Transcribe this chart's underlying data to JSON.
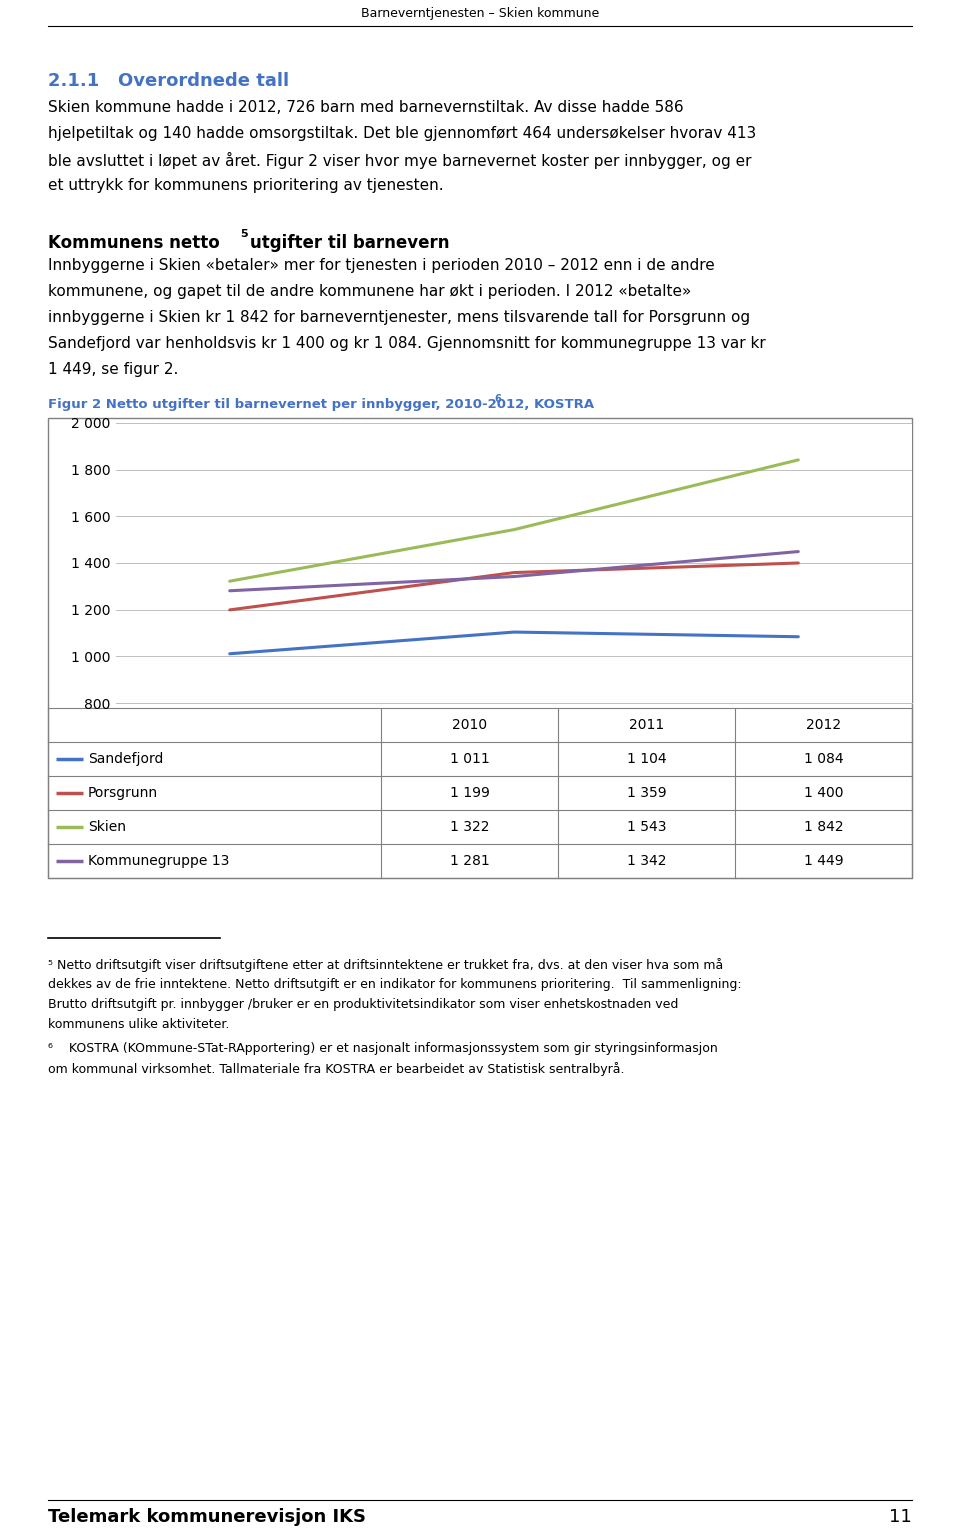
{
  "page_title": "Barneverntjenesten – Skien kommune",
  "page_number": "11",
  "footer_text": "Telemark kommunerevisjon IKS",
  "section_title": "2.1.1   Overordnede tall",
  "para1_lines": [
    "Skien kommune hadde i 2012, 726 barn med barnevernstiltak. Av disse hadde 586",
    "hjelpetiltak og 140 hadde omsorgstiltak. Det ble gjennomført 464 undersøkelser hvorav 413",
    "ble avsluttet i løpet av året. Figur 2 viser hvor mye barnevernet koster per innbygger, og er",
    "et uttrykk for kommunens prioritering av tjenesten."
  ],
  "section2_title": "Kommunens netto ⁵utgifter til barnevern",
  "para2_lines": [
    "Innbyggerne i Skien «betaler» mer for tjenesten i perioden 2010 – 2012 enn i de andre",
    "kommunene, og gapet til de andre kommunene har økt i perioden. I 2012 «betalte»",
    "innbyggerne i Skien kr 1 842 for barneverntjenester, mens tilsvarende tall for Porsgrunn og",
    "Sandefjord var henholdsvis kr 1 400 og kr 1 084. Gjennomsnitt for kommunegruppe 13 var kr",
    "1 449, se figur 2."
  ],
  "fig_caption_main": "Figur 2 Netto utgifter til barnevernet per innbygger, 2010-2012, KOSTRA",
  "fig_caption_super": "6",
  "years": [
    2010,
    2011,
    2012
  ],
  "series": [
    {
      "label": "Sandefjord",
      "color": "#4472C4",
      "values": [
        1011,
        1104,
        1084
      ]
    },
    {
      "label": "Porsgrunn",
      "color": "#C0504D",
      "values": [
        1199,
        1359,
        1400
      ]
    },
    {
      "label": "Skien",
      "color": "#9BBB59",
      "values": [
        1322,
        1543,
        1842
      ]
    },
    {
      "label": "Kommunegruppe 13",
      "color": "#8064A2",
      "values": [
        1281,
        1342,
        1449
      ]
    }
  ],
  "ylim": [
    800,
    2000
  ],
  "yticks": [
    800,
    1000,
    1200,
    1400,
    1600,
    1800,
    2000
  ],
  "ytick_labels": [
    "800",
    "1 000",
    "1 200",
    "1 400",
    "1 600",
    "1 800",
    "2 000"
  ],
  "table_header": [
    "",
    "2010",
    "2011",
    "2012"
  ],
  "table_data": [
    [
      "Sandefjord",
      "1 011",
      "1 104",
      "1 084"
    ],
    [
      "Porsgrunn",
      "1 199",
      "1 359",
      "1 400"
    ],
    [
      "Skien",
      "1 322",
      "1 543",
      "1 842"
    ],
    [
      "Kommunegruppe 13",
      "1 281",
      "1 342",
      "1 449"
    ]
  ],
  "footnote5_lines": [
    "⁵ Netto driftsutgift viser driftsutgiftene etter at driftsinntektene er trukket fra, dvs. at den viser hva som må",
    "dekkes av de frie inntektene. Netto driftsutgift er en indikator for kommunens prioritering.  Til sammenligning:",
    "Brutto driftsutgift pr. innbygger /bruker er en produktivitetsindikator som viser enhetskostnaden ved",
    "kommunens ulike aktiviteter."
  ],
  "footnote6_lines": [
    "⁶    KOSTRA (KOmmune-STat-RApportering) er et nasjonalt informasjonssystem som gir styringsinformasjon",
    "om kommunal virksomhet. Tallmateriale fra KOSTRA er bearbeidet av Statistisk sentralbyrå."
  ],
  "section_title_color": "#4472C4",
  "fig_caption_color": "#4472C4",
  "bg_color": "#FFFFFF",
  "grid_color": "#C0C0C0",
  "border_color": "#808080"
}
